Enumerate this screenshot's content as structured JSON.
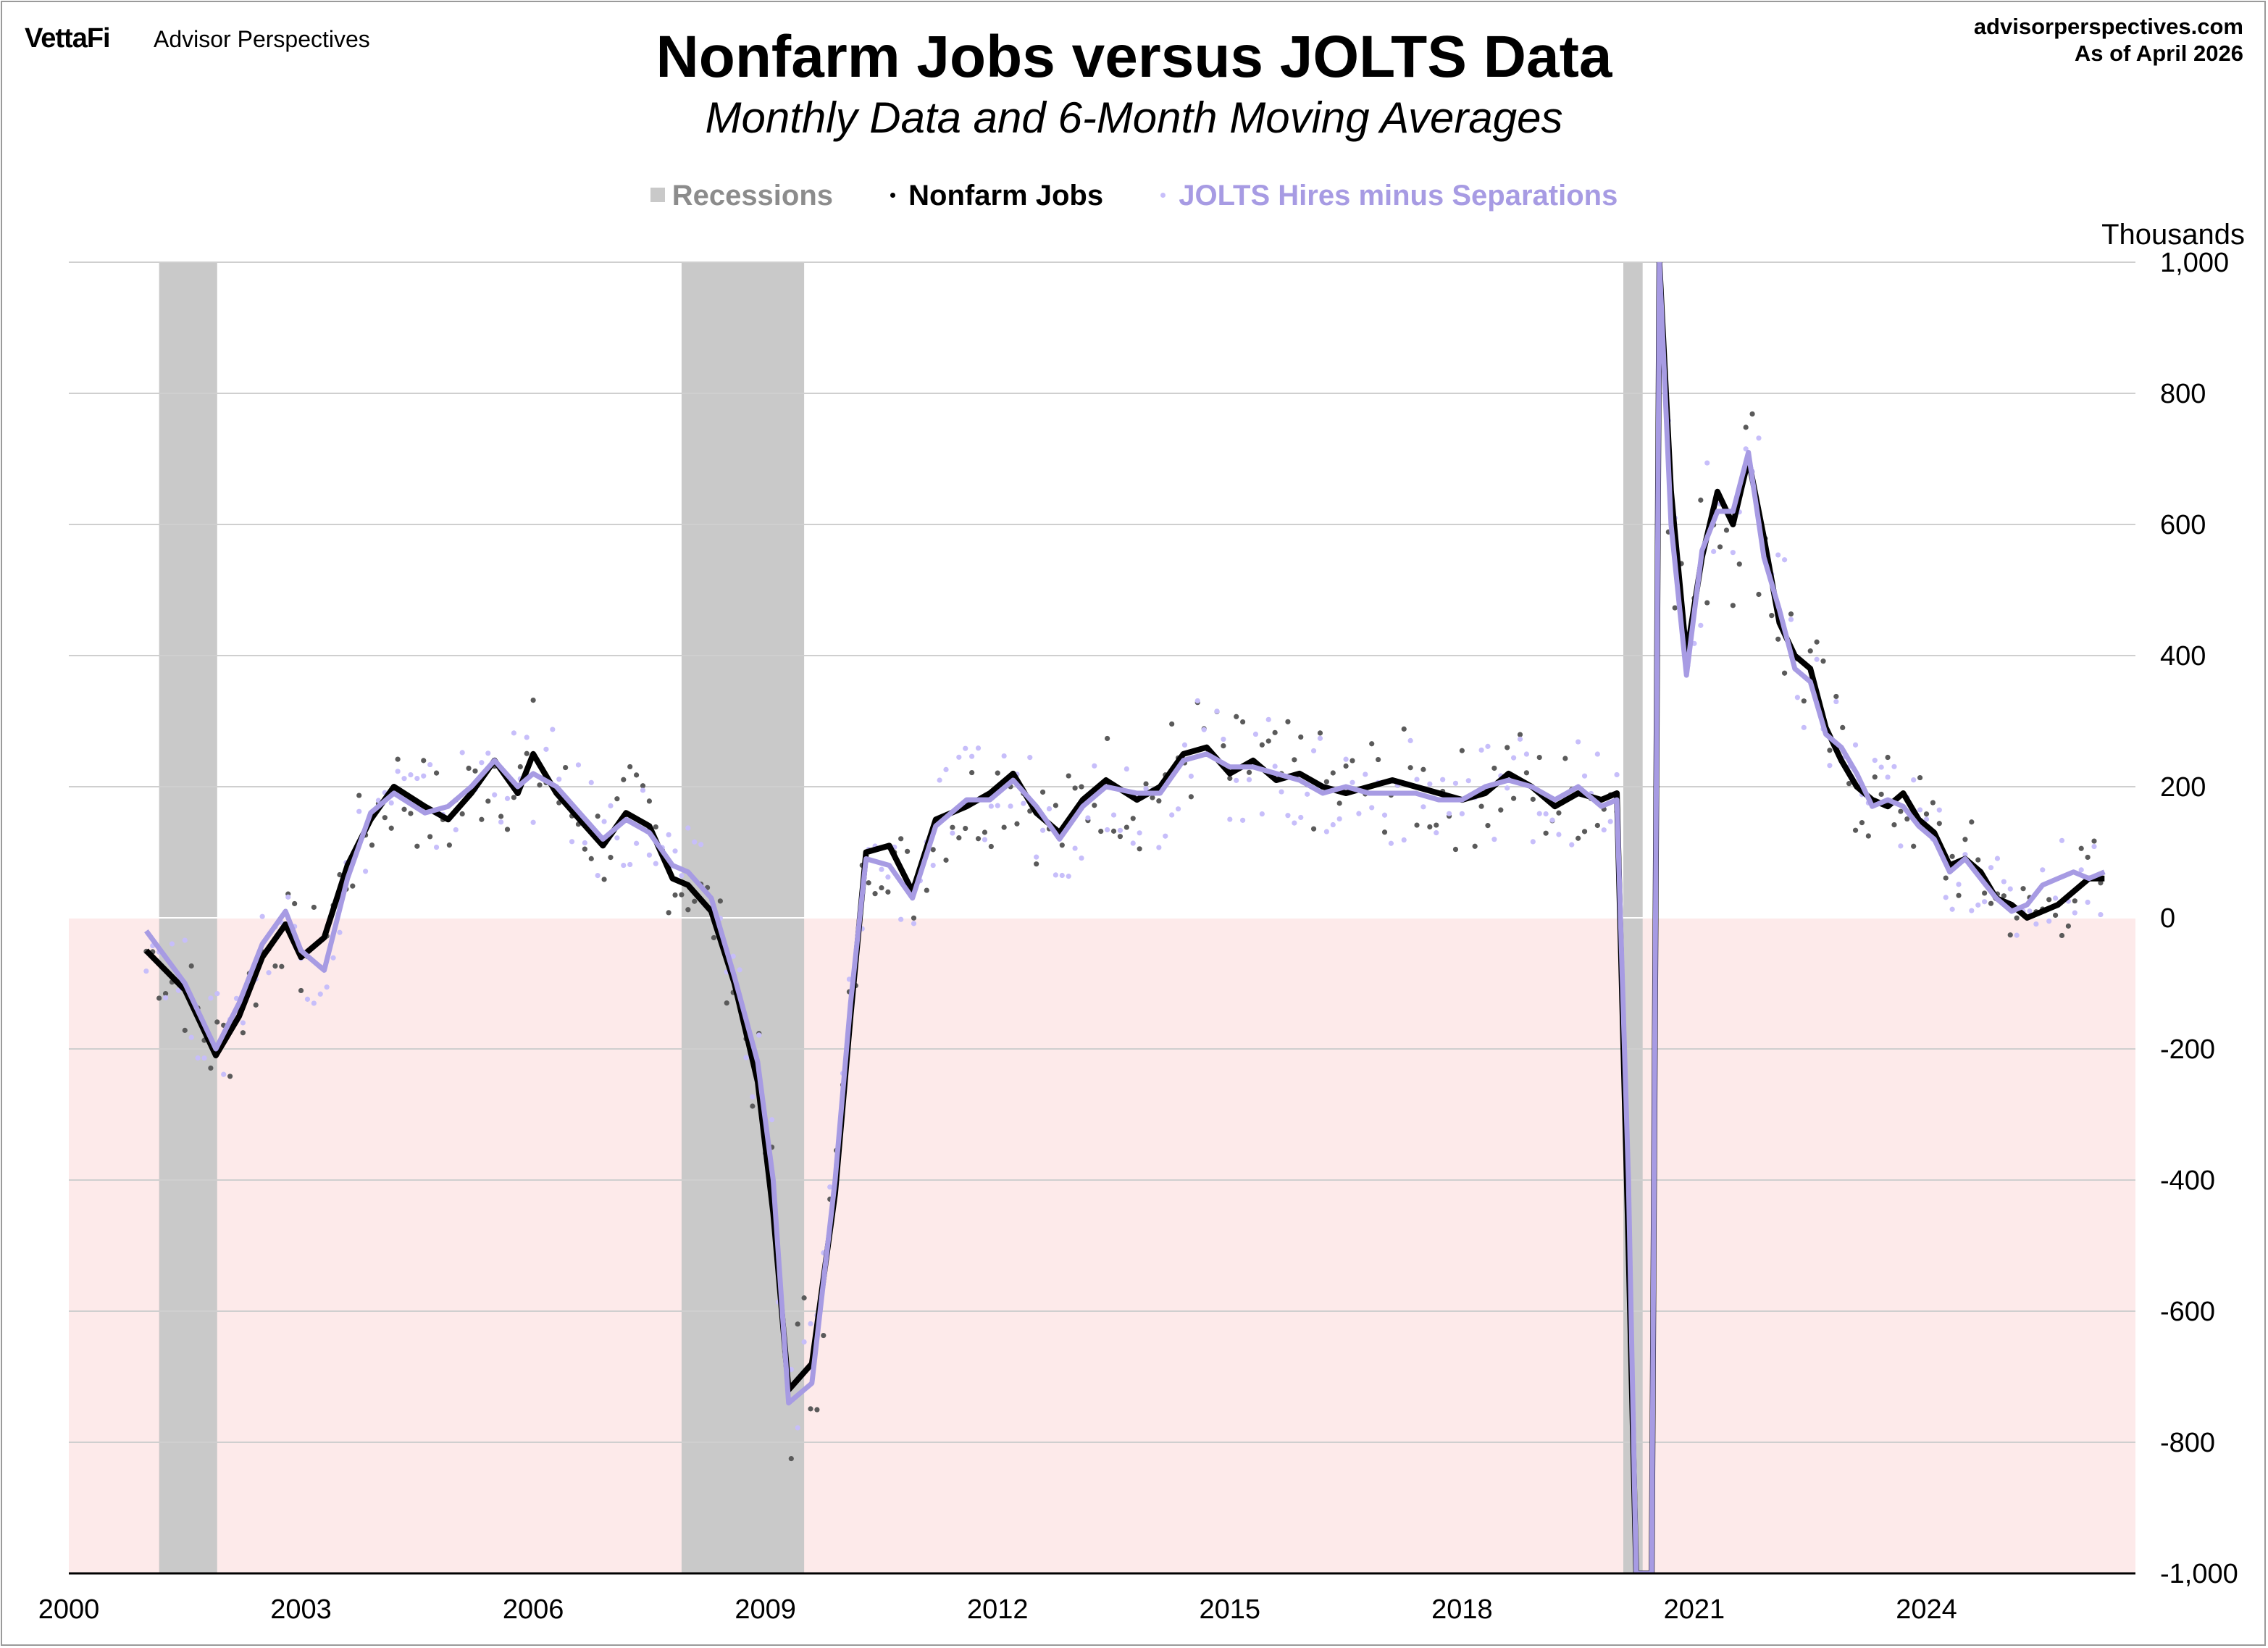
{
  "brand": {
    "name": "VettaFi",
    "product": "Advisor Perspectives"
  },
  "source": {
    "site": "advisorperspectives.com",
    "date": "As of April 2026"
  },
  "chart_data": {
    "type": "line",
    "title": "Nonfarm Jobs versus JOLTS Data",
    "subtitle": "Monthly Data and 6-Month Moving Averages",
    "ylabel": "Thousands",
    "xlabel": "",
    "xlim": [
      2000.0,
      2026.7
    ],
    "ylim": [
      -1000,
      1000
    ],
    "grid": true,
    "legend_position": "top-center",
    "x_ticks": [
      2000,
      2003,
      2006,
      2009,
      2012,
      2015,
      2018,
      2021,
      2024
    ],
    "y_ticks": [
      -1000,
      -800,
      -600,
      -400,
      -200,
      0,
      200,
      400,
      600,
      800,
      1000
    ],
    "y_tick_labels": [
      "-1,000",
      "-800",
      "-600",
      "-400",
      "-200",
      "0",
      "200",
      "400",
      "600",
      "800",
      "1,000"
    ],
    "recessions": [
      {
        "start": "2001-03",
        "end": "2001-11"
      },
      {
        "start": "2007-12",
        "end": "2009-06"
      },
      {
        "start": "2020-02",
        "end": "2020-04"
      }
    ],
    "legend": [
      {
        "label": "Recessions",
        "color": "#c9c9c9",
        "kind": "square"
      },
      {
        "label": "Nonfarm Jobs",
        "color": "#000000",
        "kind": "dot"
      },
      {
        "label": "JOLTS Hires minus Separations",
        "color": "#a79be3",
        "kind": "dot"
      }
    ],
    "series": [
      {
        "name": "Nonfarm Jobs",
        "color": "#000000",
        "x": [
          2001.0,
          2001.5,
          2001.9,
          2002.2,
          2002.5,
          2002.8,
          2003.0,
          2003.3,
          2003.6,
          2003.9,
          2004.2,
          2004.6,
          2004.9,
          2005.2,
          2005.5,
          2005.8,
          2006.0,
          2006.3,
          2006.6,
          2006.9,
          2007.2,
          2007.5,
          2007.8,
          2008.0,
          2008.3,
          2008.6,
          2008.9,
          2009.1,
          2009.3,
          2009.6,
          2009.9,
          2010.1,
          2010.3,
          2010.6,
          2010.9,
          2011.2,
          2011.6,
          2011.9,
          2012.2,
          2012.5,
          2012.8,
          2013.1,
          2013.4,
          2013.8,
          2014.1,
          2014.4,
          2014.7,
          2015.0,
          2015.3,
          2015.6,
          2015.9,
          2016.2,
          2016.5,
          2016.8,
          2017.1,
          2017.4,
          2017.7,
          2018.0,
          2018.3,
          2018.6,
          2018.9,
          2019.2,
          2019.5,
          2019.8,
          2020.0,
          2020.15,
          2020.25,
          2020.45,
          2020.55,
          2020.7,
          2020.9,
          2021.1,
          2021.3,
          2021.5,
          2021.7,
          2021.9,
          2022.1,
          2022.3,
          2022.5,
          2022.7,
          2022.9,
          2023.1,
          2023.3,
          2023.5,
          2023.7,
          2023.9,
          2024.1,
          2024.3,
          2024.5,
          2024.7,
          2024.9,
          2025.1,
          2025.3,
          2025.5,
          2025.7,
          2025.9,
          2026.1,
          2026.3
        ],
        "values": [
          -50,
          -110,
          -210,
          -150,
          -60,
          -10,
          -60,
          -30,
          80,
          150,
          200,
          170,
          150,
          190,
          240,
          190,
          250,
          190,
          150,
          110,
          160,
          140,
          60,
          50,
          10,
          -100,
          -250,
          -450,
          -720,
          -680,
          -420,
          -150,
          100,
          110,
          40,
          150,
          170,
          190,
          220,
          160,
          130,
          180,
          210,
          180,
          200,
          250,
          260,
          220,
          240,
          210,
          220,
          200,
          190,
          200,
          210,
          200,
          190,
          180,
          190,
          220,
          200,
          170,
          190,
          180,
          190,
          -500,
          -1000,
          -1000,
          1000,
          650,
          400,
          550,
          650,
          600,
          700,
          580,
          450,
          400,
          380,
          290,
          240,
          200,
          180,
          170,
          190,
          150,
          130,
          80,
          90,
          70,
          30,
          20,
          0,
          10,
          20,
          40,
          60,
          60
        ]
      },
      {
        "name": "JOLTS Hires minus Separations",
        "color": "#a79be3",
        "x": [
          2001.0,
          2001.5,
          2001.9,
          2002.2,
          2002.5,
          2002.8,
          2003.0,
          2003.3,
          2003.6,
          2003.9,
          2004.2,
          2004.6,
          2004.9,
          2005.2,
          2005.5,
          2005.8,
          2006.0,
          2006.3,
          2006.6,
          2006.9,
          2007.2,
          2007.5,
          2007.8,
          2008.0,
          2008.3,
          2008.6,
          2008.9,
          2009.1,
          2009.3,
          2009.6,
          2009.9,
          2010.1,
          2010.3,
          2010.6,
          2010.9,
          2011.2,
          2011.6,
          2011.9,
          2012.2,
          2012.5,
          2012.8,
          2013.1,
          2013.4,
          2013.8,
          2014.1,
          2014.4,
          2014.7,
          2015.0,
          2015.3,
          2015.6,
          2015.9,
          2016.2,
          2016.5,
          2016.8,
          2017.1,
          2017.4,
          2017.7,
          2018.0,
          2018.3,
          2018.6,
          2018.9,
          2019.2,
          2019.5,
          2019.8,
          2020.0,
          2020.15,
          2020.25,
          2020.45,
          2020.55,
          2020.7,
          2020.9,
          2021.1,
          2021.3,
          2021.5,
          2021.7,
          2021.9,
          2022.1,
          2022.3,
          2022.5,
          2022.7,
          2022.9,
          2023.1,
          2023.3,
          2023.5,
          2023.7,
          2023.9,
          2024.1,
          2024.3,
          2024.5,
          2024.7,
          2024.9,
          2025.1,
          2025.3,
          2025.5,
          2025.7,
          2025.9,
          2026.1,
          2026.3
        ],
        "values": [
          -20,
          -100,
          -200,
          -130,
          -40,
          10,
          -50,
          -80,
          60,
          160,
          190,
          160,
          170,
          200,
          240,
          200,
          220,
          200,
          160,
          120,
          150,
          130,
          80,
          70,
          30,
          -90,
          -220,
          -400,
          -740,
          -710,
          -400,
          -130,
          90,
          80,
          30,
          140,
          180,
          180,
          210,
          170,
          120,
          170,
          200,
          190,
          190,
          240,
          250,
          230,
          230,
          220,
          210,
          190,
          200,
          190,
          190,
          190,
          180,
          180,
          200,
          210,
          200,
          180,
          200,
          170,
          180,
          -400,
          -1000,
          -1000,
          1000,
          600,
          370,
          560,
          620,
          620,
          710,
          550,
          470,
          380,
          360,
          280,
          260,
          220,
          170,
          180,
          170,
          140,
          120,
          70,
          90,
          60,
          30,
          10,
          20,
          50,
          60,
          70,
          60,
          70
        ]
      }
    ]
  }
}
